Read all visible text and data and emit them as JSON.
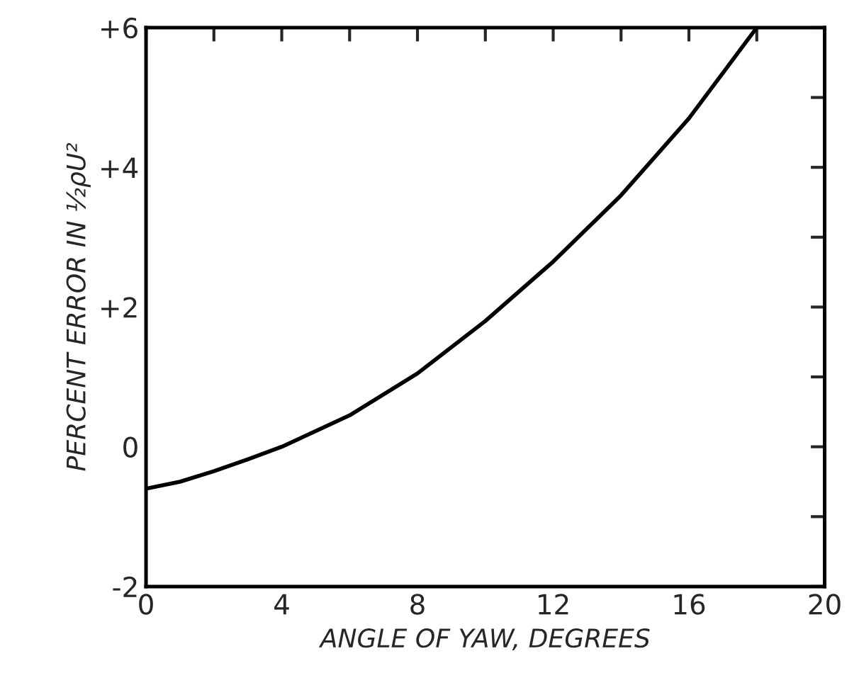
{
  "chart_data": {
    "type": "line",
    "xlabel": "ANGLE OF YAW, DEGREES",
    "ylabel": "PERCENT ERROR IN ½ρU²",
    "x": [
      0,
      1,
      2,
      3,
      4,
      6,
      8,
      10,
      12,
      14,
      16,
      18
    ],
    "series": [
      {
        "color": "#000000",
        "values": [
          -0.6,
          -0.5,
          -0.35,
          -0.18,
          0,
          0.45,
          1.05,
          1.8,
          2.65,
          3.6,
          4.7,
          6.0
        ]
      }
    ],
    "xlim": [
      0,
      20
    ],
    "xticks": [
      0,
      {
        "value": 2,
        "label": null
      },
      4,
      {
        "value": 6,
        "label": null
      },
      8,
      {
        "value": 10,
        "label": null
      },
      12,
      {
        "value": 14,
        "label": null
      },
      16,
      {
        "value": 18,
        "label": null
      },
      20
    ],
    "ylim": [
      -2,
      6
    ],
    "yticks": [
      {
        "value": -2,
        "label": "-2"
      },
      {
        "value": -1,
        "label": null
      },
      0,
      {
        "value": 1,
        "label": null
      },
      {
        "value": 2,
        "label": "+2"
      },
      {
        "value": 3,
        "label": null
      },
      {
        "value": 4,
        "label": "+4"
      },
      {
        "value": 5,
        "label": null
      },
      {
        "value": 6,
        "label": "+6"
      }
    ],
    "grid": false,
    "marker": "none",
    "line_style": "solid"
  }
}
